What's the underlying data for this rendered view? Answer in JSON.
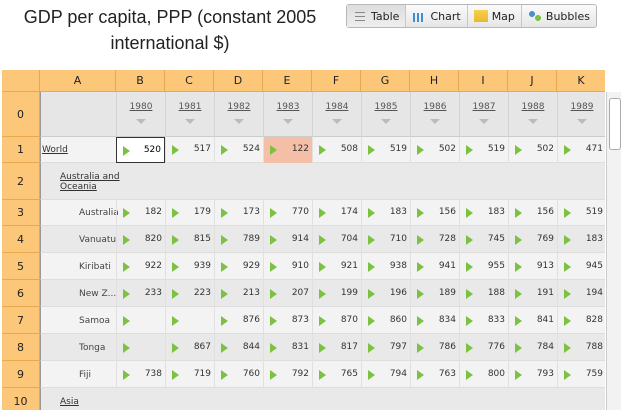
{
  "header": {
    "title": "GDP per capita, PPP (constant 2005 international $)",
    "tabs": [
      "Table",
      "Chart",
      "Map",
      "Bubbles"
    ]
  },
  "table": {
    "column_letters": [
      "A",
      "B",
      "C",
      "D",
      "E",
      "F",
      "G",
      "H",
      "I",
      "J",
      "K"
    ],
    "row_numbers": [
      0,
      1,
      2,
      3,
      4,
      5,
      6,
      7,
      8,
      9,
      10
    ],
    "years": [
      1980,
      1981,
      1982,
      1983,
      1984,
      1985,
      1986,
      1987,
      1988,
      1989
    ],
    "rows": [
      {
        "name": "World",
        "values": [
          520,
          517,
          524,
          122,
          508,
          519,
          502,
          519,
          502,
          471
        ]
      },
      {
        "name": "Australia and Oceania"
      },
      {
        "name": "Australia",
        "values": [
          182,
          179,
          173,
          770,
          174,
          183,
          156,
          183,
          156,
          519
        ]
      },
      {
        "name": "Vanuatu",
        "values": [
          820,
          815,
          789,
          914,
          704,
          710,
          728,
          745,
          769,
          183
        ]
      },
      {
        "name": "Kiribati",
        "values": [
          922,
          939,
          929,
          910,
          921,
          938,
          941,
          955,
          913,
          945
        ]
      },
      {
        "name": "New Z...",
        "values": [
          233,
          223,
          213,
          207,
          199,
          196,
          189,
          188,
          191,
          194
        ]
      },
      {
        "name": "Samoa",
        "values": [
          null,
          null,
          876,
          873,
          870,
          860,
          834,
          833,
          841,
          828
        ]
      },
      {
        "name": "Tonga",
        "values": [
          null,
          867,
          844,
          831,
          817,
          797,
          786,
          776,
          784,
          788
        ]
      },
      {
        "name": "Fiji",
        "values": [
          738,
          719,
          760,
          792,
          765,
          794,
          763,
          800,
          793,
          759
        ]
      },
      {
        "name": "Asia"
      }
    ]
  }
}
